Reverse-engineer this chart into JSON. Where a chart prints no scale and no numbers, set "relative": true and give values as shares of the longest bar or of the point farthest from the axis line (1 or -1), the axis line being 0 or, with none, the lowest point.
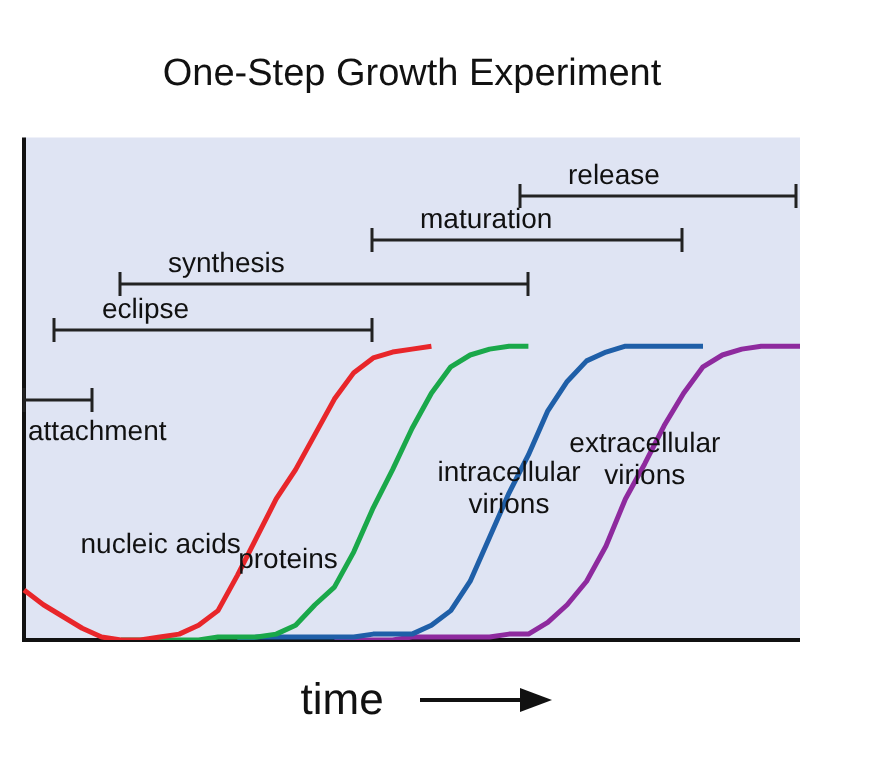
{
  "chart_data": {
    "type": "line",
    "title": "One-Step Growth Experiment",
    "xlabel": "time",
    "relative": true,
    "tick_labels": false,
    "legend": false,
    "marker": "none",
    "categories": [
      null,
      null,
      null,
      null,
      null,
      null,
      null,
      null,
      null,
      null,
      null,
      null,
      null,
      null,
      null,
      null,
      null,
      null,
      null,
      null,
      null,
      null,
      null,
      null,
      null,
      null,
      null,
      null,
      null,
      null,
      null,
      null,
      null,
      null,
      null,
      null,
      null,
      null,
      null,
      null,
      null
    ],
    "series": [
      {
        "name": "nucleic acids",
        "color": "#e8262a",
        "values": [
          0.17,
          0.12,
          0.08,
          0.04,
          0.01,
          0,
          0,
          0.01,
          0.02,
          0.05,
          0.1,
          0.22,
          0.35,
          0.48,
          0.58,
          0.7,
          0.82,
          0.91,
          0.96,
          0.98,
          0.99,
          1,
          null,
          null,
          null,
          null,
          null,
          null,
          null,
          null,
          null,
          null,
          null,
          null,
          null,
          null,
          null,
          null,
          null,
          null,
          null
        ]
      },
      {
        "name": "proteins",
        "color": "#1aa84a",
        "values": [
          null,
          null,
          null,
          null,
          null,
          0,
          0,
          0,
          0,
          0,
          0.01,
          0.01,
          0.01,
          0.02,
          0.05,
          0.12,
          0.18,
          0.3,
          0.45,
          0.58,
          0.72,
          0.84,
          0.93,
          0.97,
          0.99,
          1,
          1,
          null,
          null,
          null,
          null,
          null,
          null,
          null,
          null,
          null,
          null,
          null,
          null,
          null,
          null
        ]
      },
      {
        "name": "intracellular\nvirions",
        "color": "#1f5fa8",
        "values": [
          null,
          null,
          null,
          null,
          null,
          null,
          null,
          null,
          null,
          null,
          null,
          0,
          0.01,
          0.01,
          0.01,
          0.01,
          0.01,
          0.01,
          0.02,
          0.02,
          0.02,
          0.05,
          0.1,
          0.2,
          0.35,
          0.5,
          0.63,
          0.78,
          0.88,
          0.95,
          0.98,
          1,
          1,
          1,
          1,
          1,
          null,
          null,
          null,
          null,
          null
        ]
      },
      {
        "name": "extracellular\nvirions",
        "color": "#8e2a9e",
        "values": [
          null,
          null,
          null,
          null,
          null,
          null,
          null,
          null,
          null,
          null,
          null,
          null,
          null,
          null,
          null,
          null,
          0,
          0,
          0,
          0,
          0.01,
          0.01,
          0.01,
          0.01,
          0.01,
          0.02,
          0.02,
          0.06,
          0.12,
          0.2,
          0.32,
          0.48,
          0.6,
          0.73,
          0.84,
          0.93,
          0.97,
          0.99,
          1,
          1,
          1
        ]
      }
    ],
    "annotations": [
      "attachment",
      "eclipse",
      "synthesis",
      "maturation",
      "release"
    ]
  }
}
